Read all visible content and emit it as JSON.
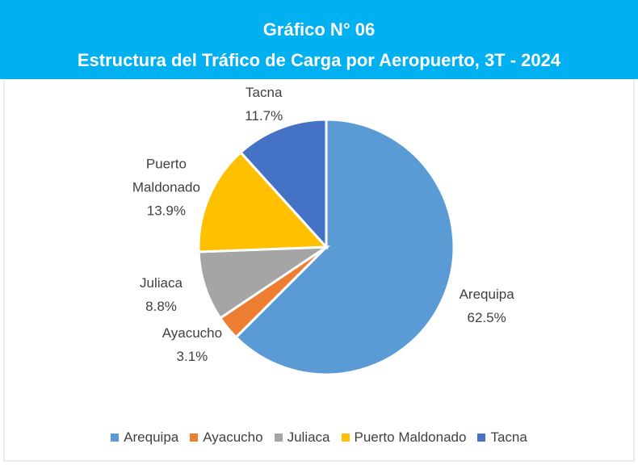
{
  "chart_data": {
    "type": "pie",
    "title": "Gráfico N° 06",
    "subtitle": "Estructura del Tráfico de Carga por Aeropuerto, 3T - 2024",
    "categories": [
      "Arequipa",
      "Ayacucho",
      "Juliaca",
      "Puerto Maldonado",
      "Tacna"
    ],
    "values": [
      62.5,
      3.1,
      8.8,
      13.9,
      11.7
    ],
    "value_labels": [
      "62.5%",
      "3.1%",
      "8.8%",
      "13.9%",
      "11.7%"
    ],
    "colors": [
      "#5b9bd5",
      "#ed7d31",
      "#a5a5a5",
      "#ffc000",
      "#4472c4"
    ],
    "legend": "bottom"
  }
}
